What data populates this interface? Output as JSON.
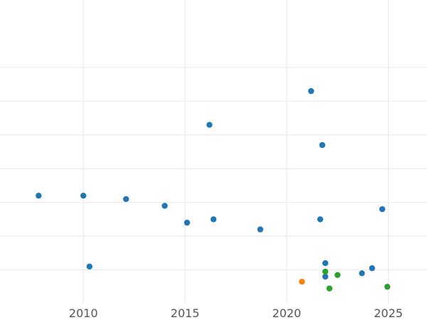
{
  "chart_data": {
    "type": "scatter",
    "title": "",
    "xlabel": "",
    "ylabel": "",
    "xlim": [
      2005.9,
      2026.9
    ],
    "ylim": [
      0,
      9
    ],
    "grid": true,
    "x_ticks": [
      2010,
      2015,
      2020,
      2025
    ],
    "y_grid": [
      1,
      2,
      3,
      4,
      5,
      6,
      7
    ],
    "series": [
      {
        "color": "#1f77b4",
        "points": [
          {
            "x": 2007.8,
            "y": 3.2
          },
          {
            "x": 2010.0,
            "y": 3.2
          },
          {
            "x": 2010.3,
            "y": 1.1
          },
          {
            "x": 2012.1,
            "y": 3.1
          },
          {
            "x": 2014.0,
            "y": 2.9
          },
          {
            "x": 2015.1,
            "y": 2.4
          },
          {
            "x": 2016.2,
            "y": 5.3
          },
          {
            "x": 2016.4,
            "y": 2.5
          },
          {
            "x": 2018.7,
            "y": 2.2
          },
          {
            "x": 2021.2,
            "y": 6.3
          },
          {
            "x": 2021.65,
            "y": 2.5
          },
          {
            "x": 2021.75,
            "y": 4.7
          },
          {
            "x": 2021.9,
            "y": 1.2
          },
          {
            "x": 2021.9,
            "y": 0.8
          },
          {
            "x": 2023.7,
            "y": 0.9
          },
          {
            "x": 2024.2,
            "y": 1.05
          },
          {
            "x": 2024.7,
            "y": 2.8
          }
        ]
      },
      {
        "color": "#ff7f0e",
        "points": [
          {
            "x": 2020.75,
            "y": 0.65
          }
        ]
      },
      {
        "color": "#2ca02c",
        "points": [
          {
            "x": 2021.9,
            "y": 0.95
          },
          {
            "x": 2022.1,
            "y": 0.45
          },
          {
            "x": 2022.5,
            "y": 0.85
          },
          {
            "x": 2024.95,
            "y": 0.5
          }
        ]
      }
    ]
  }
}
